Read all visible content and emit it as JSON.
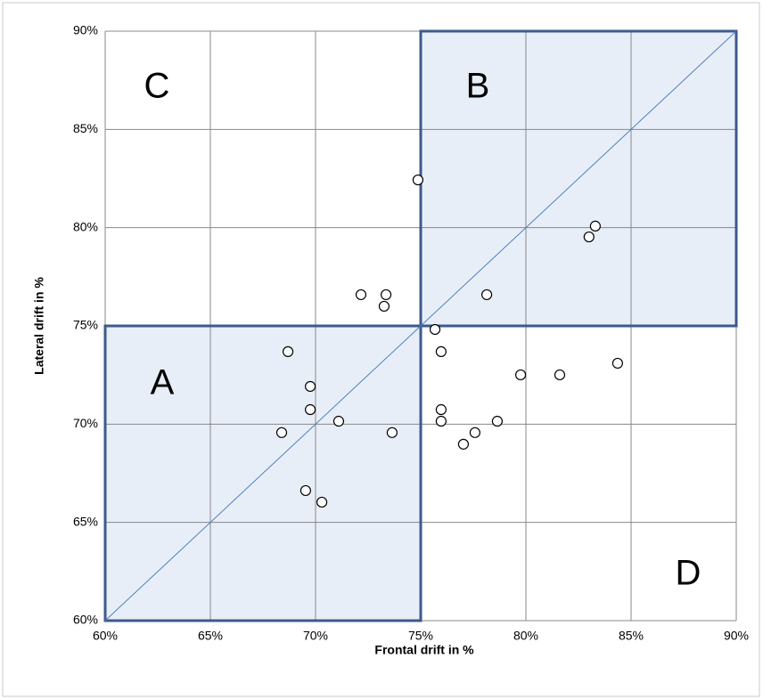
{
  "chart_data": {
    "type": "scatter",
    "x_label": "Frontal drift in %",
    "y_label": "Lateral drift in %",
    "x": [
      74.87,
      83.3,
      83.0,
      73.35,
      72.16,
      73.26,
      78.14,
      75.68,
      68.69,
      75.97,
      84.36,
      79.75,
      81.61,
      69.75,
      69.75,
      75.97,
      71.1,
      75.97,
      78.64,
      68.39,
      73.64,
      77.58,
      77.03,
      69.53,
      70.3
    ],
    "values": [
      82.43,
      80.08,
      79.53,
      76.59,
      76.59,
      76.0,
      76.59,
      74.82,
      73.69,
      73.69,
      73.1,
      72.51,
      72.51,
      71.92,
      70.74,
      70.74,
      70.15,
      70.15,
      70.15,
      69.57,
      69.57,
      69.57,
      68.98,
      66.62,
      66.03
    ],
    "color": "#000000",
    "xlim": [
      60,
      90
    ],
    "ylim": [
      60,
      90
    ],
    "xticks": [
      {
        "value": 60,
        "label": "60%"
      },
      {
        "value": 65,
        "label": "65%"
      },
      {
        "value": 70,
        "label": "70%"
      },
      {
        "value": 75,
        "label": "75%"
      },
      {
        "value": 80,
        "label": "80%"
      },
      {
        "value": 85,
        "label": "85%"
      },
      {
        "value": 90,
        "label": "90%"
      }
    ],
    "yticks": [
      {
        "value": 60,
        "label": "60%"
      },
      {
        "value": 65,
        "label": "65%"
      },
      {
        "value": 70,
        "label": "70%"
      },
      {
        "value": 75,
        "label": "75%"
      },
      {
        "value": 80,
        "label": "80%"
      },
      {
        "value": 85,
        "label": "85%"
      },
      {
        "value": 90,
        "label": "90%"
      }
    ],
    "grid": true,
    "boxes": [
      {
        "xlim": [
          60,
          75
        ],
        "ylim": [
          60,
          75
        ],
        "color": "#3c5a8c"
      },
      {
        "xlim": [
          75,
          90
        ],
        "ylim": [
          75,
          90
        ],
        "color": "#3c5a8c"
      }
    ],
    "diagonal_color": "#4f81bd",
    "annotations": [
      "A",
      "B",
      "C",
      "D"
    ]
  }
}
